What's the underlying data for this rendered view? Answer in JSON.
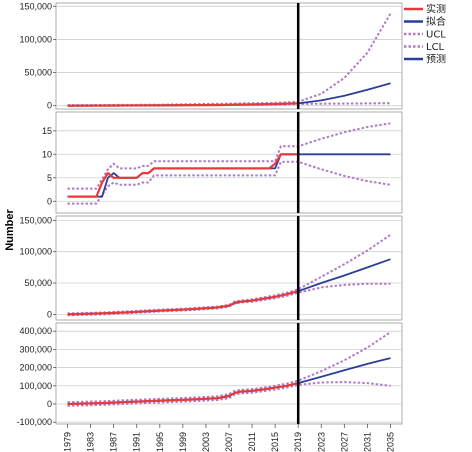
{
  "y_axis_label": "Number",
  "legend": [
    {
      "label": "实测",
      "color": "#e53a3a",
      "style": "solid"
    },
    {
      "label": "拟合",
      "color": "#2b3f9a",
      "style": "solid"
    },
    {
      "label": "UCL",
      "color": "#b07cc8",
      "style": "dotted"
    },
    {
      "label": "LCL",
      "color": "#b07cc8",
      "style": "dotted"
    },
    {
      "label": "预测",
      "color": "#2b3f9a",
      "style": "solid"
    }
  ],
  "x_ticks": [
    "1979",
    "1983",
    "1987",
    "1991",
    "1995",
    "1999",
    "2003",
    "2007",
    "2011",
    "2015",
    "2019",
    "2023",
    "2027",
    "2031",
    "2035"
  ],
  "forecast_start": 2019,
  "chart_data": [
    {
      "type": "line",
      "ylim": [
        -5000,
        155000
      ],
      "y_ticks": [
        {
          "value": 0,
          "label": "0"
        },
        {
          "value": 50000,
          "label": "50,000"
        },
        {
          "value": 100000,
          "label": "100,000"
        },
        {
          "value": 150000,
          "label": "150,000"
        }
      ],
      "observed": {
        "x": [
          1979,
          1981,
          1987,
          1995,
          2005,
          2010,
          2015,
          2019
        ],
        "y": [
          0,
          0,
          300,
          600,
          1100,
          1800,
          2600,
          3500
        ]
      },
      "fitted": {
        "x": [
          1979,
          1987,
          1995,
          2005,
          2010,
          2015,
          2019
        ],
        "y": [
          0,
          300,
          600,
          1100,
          1800,
          2600,
          3400
        ]
      },
      "ucl": {
        "x": [
          1979,
          1995,
          2015,
          2019,
          2023,
          2027,
          2031,
          2035
        ],
        "y": [
          800,
          1500,
          4200,
          6000,
          18000,
          42000,
          80000,
          139000
        ]
      },
      "lcl": {
        "x": [
          1979,
          1995,
          2015,
          2019,
          2023,
          2027,
          2031,
          2035
        ],
        "y": [
          -300,
          100,
          1500,
          2500,
          3000,
          3200,
          3500,
          3800
        ]
      },
      "forecast": {
        "x": [
          2019,
          2023,
          2027,
          2031,
          2035
        ],
        "y": [
          3400,
          8000,
          15000,
          24000,
          34000
        ]
      }
    },
    {
      "type": "line",
      "ylim": [
        -2.5,
        19
      ],
      "y_ticks": [
        {
          "value": 0,
          "label": "0"
        },
        {
          "value": 5,
          "label": "5"
        },
        {
          "value": 10,
          "label": "10"
        },
        {
          "value": 15,
          "label": "15"
        }
      ],
      "observed": {
        "x": [
          1979,
          1984,
          1985,
          1986,
          1987,
          1988,
          1989,
          1990,
          1991,
          1992,
          1993,
          1994,
          1995,
          2014,
          2015,
          2016,
          2019
        ],
        "y": [
          1,
          1,
          4,
          6,
          5,
          5,
          5,
          5,
          5,
          6,
          6,
          7,
          7,
          7,
          8,
          10,
          10
        ]
      },
      "fitted": {
        "x": [
          1979,
          1985,
          1986,
          1987,
          1988,
          1989,
          1990,
          1991,
          1992,
          1993,
          1994,
          2015,
          2016,
          2019
        ],
        "y": [
          1,
          1,
          5,
          6,
          5,
          5,
          5,
          5,
          6,
          6,
          7,
          7,
          10,
          10
        ]
      },
      "ucl": {
        "x": [
          1979,
          1984,
          1986,
          1987,
          1988,
          1989,
          1990,
          1991,
          1992,
          1993,
          1994,
          2015,
          2016,
          2019,
          2023,
          2027,
          2031,
          2035
        ],
        "y": [
          2.7,
          2.7,
          6.8,
          8,
          7,
          7,
          7,
          7,
          7.5,
          7.5,
          8.5,
          8.5,
          11.7,
          11.7,
          13.3,
          14.7,
          15.8,
          16.6
        ]
      },
      "lcl": {
        "x": [
          1979,
          1984,
          1986,
          1987,
          1988,
          1989,
          1990,
          1991,
          1992,
          1993,
          1994,
          2015,
          2016,
          2019,
          2023,
          2027,
          2031,
          2035
        ],
        "y": [
          -0.5,
          -0.5,
          3.2,
          4,
          3.5,
          3.5,
          3.5,
          3.5,
          4,
          4,
          5.5,
          5.5,
          8.4,
          8.4,
          6.8,
          5.4,
          4.3,
          3.5
        ]
      },
      "forecast": {
        "x": [
          2019,
          2035
        ],
        "y": [
          10,
          10
        ]
      }
    },
    {
      "type": "line",
      "ylim": [
        -9000,
        157000
      ],
      "y_ticks": [
        {
          "value": 0,
          "label": "0"
        },
        {
          "value": 50000,
          "label": "50,000"
        },
        {
          "value": 100000,
          "label": "100,000"
        },
        {
          "value": 150000,
          "label": "150,000"
        }
      ],
      "observed": {
        "x": [
          1979,
          1985,
          1990,
          1995,
          2000,
          2005,
          2007,
          2008,
          2009,
          2011,
          2013,
          2015,
          2017,
          2019
        ],
        "y": [
          0,
          1500,
          3500,
          6000,
          8000,
          11000,
          14000,
          18000,
          20000,
          22000,
          25000,
          28000,
          32000,
          37000
        ]
      },
      "fitted": {
        "x": [
          1979,
          1985,
          1990,
          1995,
          2000,
          2005,
          2007,
          2008,
          2009,
          2011,
          2013,
          2015,
          2017,
          2019
        ],
        "y": [
          0,
          1500,
          3500,
          6000,
          8000,
          11000,
          13500,
          19000,
          20500,
          22000,
          25000,
          28000,
          32000,
          37000
        ]
      },
      "ucl": {
        "x": [
          1979,
          1985,
          1990,
          1995,
          2000,
          2005,
          2007,
          2008,
          2009,
          2011,
          2013,
          2015,
          2017,
          2019,
          2023,
          2027,
          2031,
          2035
        ],
        "y": [
          1500,
          3000,
          5000,
          7500,
          9500,
          12500,
          15000,
          20500,
          22000,
          24000,
          27000,
          30500,
          34500,
          40000,
          60000,
          80000,
          102000,
          127000
        ]
      },
      "lcl": {
        "x": [
          1979,
          1985,
          1990,
          1995,
          2000,
          2005,
          2007,
          2008,
          2009,
          2011,
          2013,
          2015,
          2017,
          2019,
          2023,
          2027,
          2031,
          2035
        ],
        "y": [
          -1500,
          0,
          2000,
          4500,
          6500,
          9500,
          12000,
          17500,
          19000,
          20000,
          23000,
          26000,
          29500,
          34500,
          43000,
          47000,
          49000,
          49000
        ]
      },
      "forecast": {
        "x": [
          2019,
          2023,
          2027,
          2031,
          2035
        ],
        "y": [
          37000,
          50000,
          62000,
          75000,
          88000
        ]
      }
    },
    {
      "type": "line",
      "ylim": [
        -110000,
        445000
      ],
      "y_ticks": [
        {
          "value": -100000,
          "label": "-100,000"
        },
        {
          "value": 0,
          "label": "0"
        },
        {
          "value": 100000,
          "label": "100,000"
        },
        {
          "value": 200000,
          "label": "200,000"
        },
        {
          "value": 300000,
          "label": "300,000"
        },
        {
          "value": 400000,
          "label": "400,000"
        }
      ],
      "observed": {
        "x": [
          1979,
          1985,
          1990,
          1995,
          2000,
          2005,
          2007,
          2008,
          2009,
          2011,
          2013,
          2015,
          2017,
          2019
        ],
        "y": [
          0,
          5000,
          12000,
          18000,
          24000,
          32000,
          45000,
          60000,
          68000,
          72000,
          80000,
          90000,
          100000,
          115000
        ]
      },
      "fitted": {
        "x": [
          1979,
          1985,
          1990,
          1995,
          2000,
          2005,
          2007,
          2008,
          2009,
          2011,
          2013,
          2015,
          2017,
          2019
        ],
        "y": [
          0,
          5000,
          12000,
          18000,
          24000,
          32000,
          42000,
          62000,
          68000,
          72000,
          80000,
          90000,
          100000,
          115000
        ]
      },
      "ucl": {
        "x": [
          1979,
          1985,
          1990,
          1995,
          2000,
          2005,
          2007,
          2008,
          2009,
          2011,
          2013,
          2015,
          2017,
          2019,
          2023,
          2027,
          2031,
          2035
        ],
        "y": [
          10000,
          15000,
          22000,
          28000,
          34000,
          42000,
          55000,
          72000,
          78000,
          82000,
          90000,
          100000,
          112000,
          128000,
          180000,
          240000,
          310000,
          395000
        ]
      },
      "lcl": {
        "x": [
          1979,
          1985,
          1990,
          1995,
          2000,
          2005,
          2007,
          2008,
          2009,
          2011,
          2013,
          2015,
          2017,
          2019,
          2023,
          2027,
          2031,
          2035
        ],
        "y": [
          -10000,
          -5000,
          2000,
          8000,
          14000,
          22000,
          32000,
          52000,
          58000,
          62000,
          70000,
          80000,
          90000,
          105000,
          118000,
          120000,
          115000,
          100000
        ]
      },
      "forecast": {
        "x": [
          2019,
          2023,
          2027,
          2031,
          2035
        ],
        "y": [
          115000,
          150000,
          185000,
          220000,
          252000
        ]
      }
    }
  ]
}
